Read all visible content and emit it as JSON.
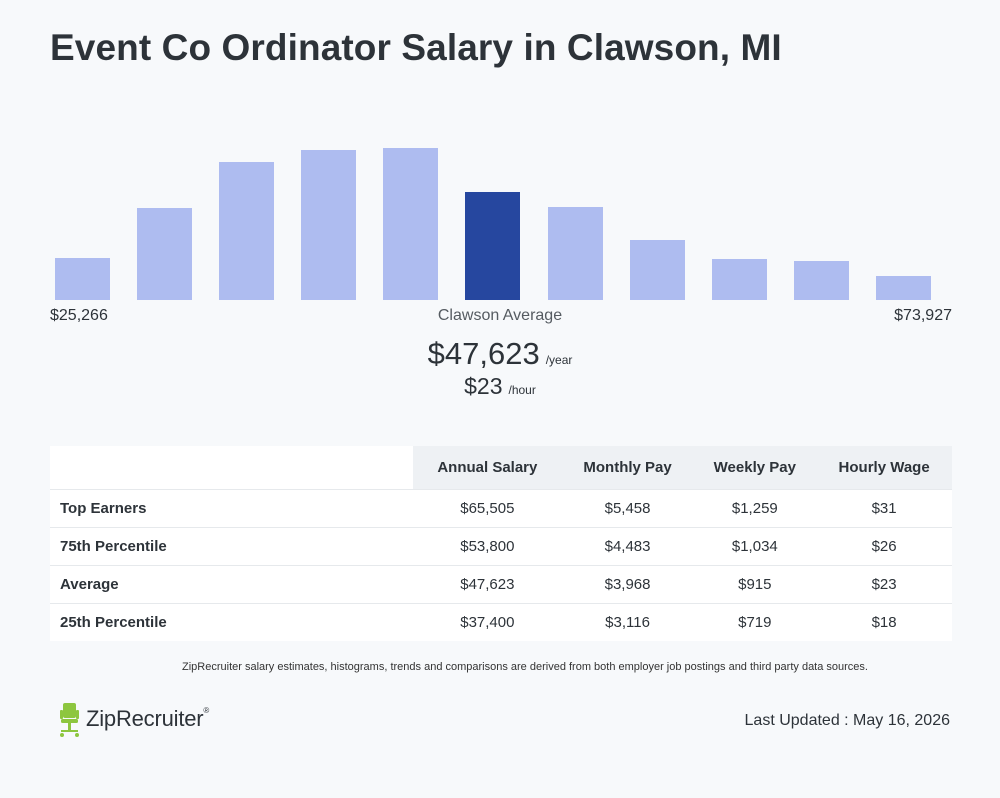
{
  "title": "Event Co Ordinator Salary in Clawson, MI",
  "chart_data": {
    "type": "bar",
    "title": "",
    "xlabel": "",
    "ylabel": "",
    "values": [
      42,
      92,
      138,
      150,
      152,
      108,
      93,
      60,
      41,
      39,
      24
    ],
    "highlight_index": 5,
    "ylim": [
      0,
      180
    ],
    "colors": {
      "bar": "#aebcf0",
      "highlight": "#26479f"
    },
    "range_min": "$25,266",
    "range_max": "$73,927",
    "average_label": "Clawson Average"
  },
  "average": {
    "annual": "$47,623",
    "annual_unit": "/year",
    "hourly": "$23",
    "hourly_unit": "/hour"
  },
  "table": {
    "headers": [
      "Annual Salary",
      "Monthly Pay",
      "Weekly Pay",
      "Hourly Wage"
    ],
    "rows": [
      {
        "label": "Top Earners",
        "cells": [
          "$65,505",
          "$5,458",
          "$1,259",
          "$31"
        ]
      },
      {
        "label": "75th Percentile",
        "cells": [
          "$53,800",
          "$4,483",
          "$1,034",
          "$26"
        ]
      },
      {
        "label": "Average",
        "cells": [
          "$47,623",
          "$3,968",
          "$915",
          "$23"
        ]
      },
      {
        "label": "25th Percentile",
        "cells": [
          "$37,400",
          "$3,116",
          "$719",
          "$18"
        ]
      }
    ]
  },
  "footnote": "ZipRecruiter salary estimates, histograms, trends and comparisons are derived from both employer job postings and third party data sources.",
  "brand": {
    "name": "ZipRecruiter",
    "mark": "®",
    "icon": "chair-icon",
    "color": "#8dc63f"
  },
  "last_updated": "Last Updated : May 16, 2026"
}
